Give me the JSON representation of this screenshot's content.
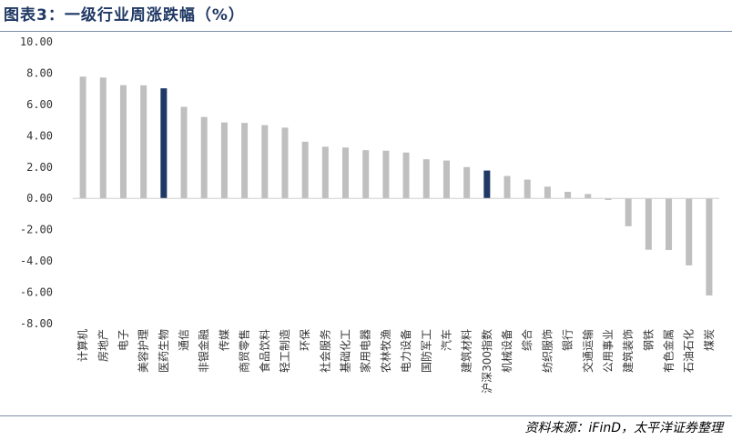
{
  "header": {
    "title": "图表3：一级行业周涨跌幅（%）",
    "source": "资料来源：iFinD，太平洋证券整理"
  },
  "colors": {
    "bar_default": "#bfbfbf",
    "bar_highlight": "#1f3864",
    "title": "#1f3864",
    "axis": "#7f8fa9"
  },
  "chart_data": {
    "type": "bar",
    "title": "图表3：一级行业周涨跌幅（%）",
    "xlabel": "",
    "ylabel": "",
    "ylim": [
      -8,
      10
    ],
    "yticks": [
      "10.00",
      "8.00",
      "6.00",
      "4.00",
      "2.00",
      "0.00",
      "-2.00",
      "-4.00",
      "-6.00",
      "-8.00"
    ],
    "grid": false,
    "legend": "none",
    "categories": [
      "计算机",
      "房地产",
      "电子",
      "美容护理",
      "医药生物",
      "通信",
      "非银金融",
      "传媒",
      "商贸零售",
      "食品饮料",
      "轻工制造",
      "环保",
      "社会服务",
      "基础化工",
      "家用电器",
      "农林牧渔",
      "电力设备",
      "国防军工",
      "汽车",
      "建筑材料",
      "沪深300指数",
      "机械设备",
      "综合",
      "纺织服饰",
      "银行",
      "交通运输",
      "公用事业",
      "建筑装饰",
      "钢铁",
      "有色金属",
      "石油石化",
      "煤炭"
    ],
    "values": [
      7.78,
      7.72,
      7.23,
      7.22,
      7.03,
      5.85,
      5.2,
      4.85,
      4.82,
      4.68,
      4.52,
      3.62,
      3.3,
      3.25,
      3.08,
      3.05,
      2.93,
      2.5,
      2.42,
      2.0,
      1.78,
      1.43,
      1.2,
      0.75,
      0.42,
      0.28,
      -0.1,
      -1.78,
      -3.28,
      -3.3,
      -4.28,
      -6.2
    ],
    "highlight": [
      "医药生物",
      "沪深300指数"
    ]
  }
}
